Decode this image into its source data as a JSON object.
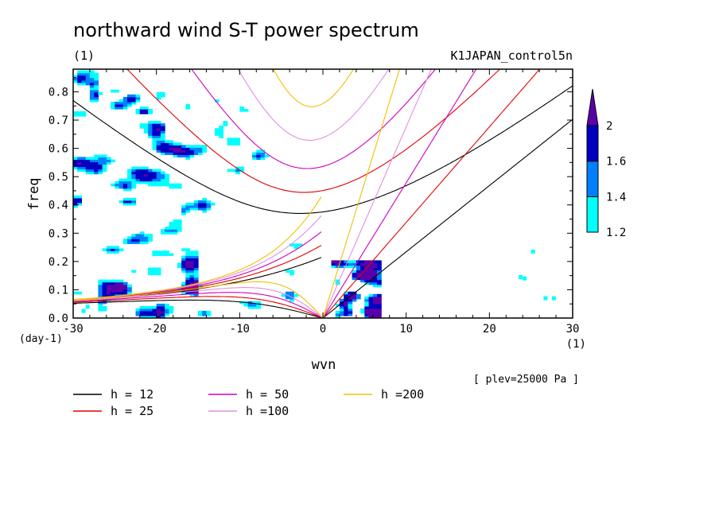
{
  "chart_data": {
    "type": "heatmap",
    "title": "northward wind S-T power spectrum",
    "title_unit": "(1)",
    "experiment": "K1JAPAN_control5n",
    "xlabel": "wvn",
    "xunit": "(1)",
    "ylabel": "freq",
    "yunit": "(day-1)",
    "level_note": "[ plev=25000 Pa ]",
    "xlim": [
      -30,
      30
    ],
    "ylim": [
      0,
      0.88
    ],
    "xticks": [
      -30,
      -20,
      -10,
      0,
      10,
      20,
      30
    ],
    "xtick_labels": [
      "-30",
      "-20",
      "-10",
      "0",
      "10",
      "20",
      "30"
    ],
    "yticks": [
      0,
      0.1,
      0.2,
      0.3,
      0.4,
      0.5,
      0.6,
      0.7,
      0.8
    ],
    "ytick_labels": [
      "0.0",
      "0.1",
      "0.2",
      "0.3",
      "0.4",
      "0.5",
      "0.6",
      "0.7",
      "0.8"
    ],
    "colorbar": {
      "levels": [
        1.2,
        1.4,
        1.6,
        2
      ],
      "labels": [
        "1.2",
        "1.4",
        "1.6",
        "2"
      ],
      "colors": [
        "#00ffff",
        "#0080ff",
        "#0000c0",
        "#5a00aa"
      ]
    },
    "dispersion_curves": [
      {
        "label": "h = 12",
        "h": 12,
        "color": "#000000"
      },
      {
        "label": "h = 25",
        "h": 25,
        "color": "#e00000"
      },
      {
        "label": "h = 50",
        "h": 50,
        "color": "#d000c0"
      },
      {
        "label": "h =100",
        "h": 100,
        "color": "#e090e0"
      },
      {
        "label": "h =200",
        "h": 200,
        "color": "#f0c000"
      }
    ]
  }
}
